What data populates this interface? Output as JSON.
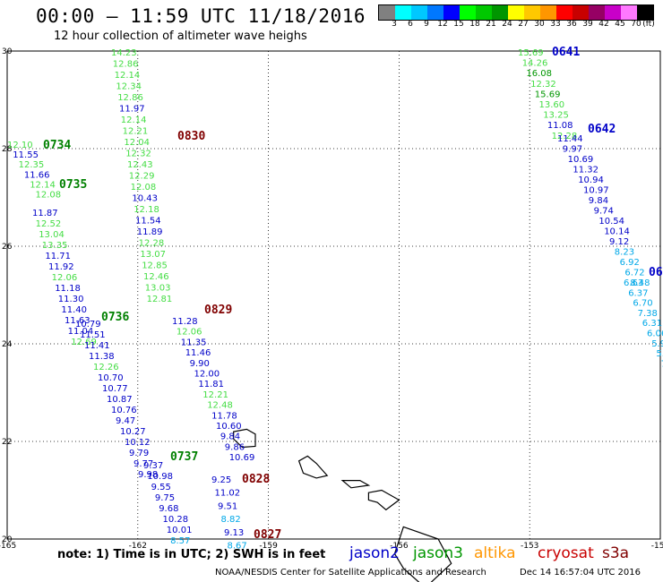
{
  "header": {
    "title": "00:00 — 11:59 UTC 11/18/2016",
    "subtitle": "12 hour collection of altimeter wave heighs"
  },
  "colorbar": {
    "colors": [
      "#808080",
      "#00ffff",
      "#00c8ff",
      "#0078ff",
      "#0000ff",
      "#00ff00",
      "#00c800",
      "#009600",
      "#ffff00",
      "#ffc800",
      "#ff9600",
      "#ff0000",
      "#c80000",
      "#960064",
      "#c800c8",
      "#ff78ff",
      "#000000"
    ],
    "labels": [
      "3",
      "6",
      "9",
      "12",
      "15",
      "18",
      "21",
      "24",
      "27",
      "30",
      "33",
      "36",
      "39",
      "42",
      "45",
      "70",
      "(ft)"
    ]
  },
  "map": {
    "lon_ticks": [
      "-165",
      "-162",
      "-159",
      "-156",
      "-153",
      "-150"
    ],
    "lat_ticks": [
      "30",
      "28",
      "26",
      "24",
      "22",
      "20"
    ],
    "lon_range": [
      -165,
      -150
    ],
    "lat_range": [
      20,
      30
    ]
  },
  "tracks": [
    {
      "label": "0734",
      "label_color": "#008000",
      "color": "#0000c8",
      "points": [
        {
          "v": "12.10",
          "c": "#44dd44"
        },
        {
          "v": "11.55",
          "c": "#0000c8"
        },
        {
          "v": "12.35",
          "c": "#44dd44"
        },
        {
          "v": "11.66",
          "c": "#0000c8"
        },
        {
          "v": "12.14",
          "c": "#44dd44"
        },
        {
          "v": "12.08",
          "c": "#44dd44"
        }
      ]
    },
    {
      "label": "0735",
      "label_color": "#008000",
      "points": [
        {
          "v": "11.87",
          "c": "#0000c8"
        },
        {
          "v": "12.52",
          "c": "#44dd44"
        },
        {
          "v": "13.04",
          "c": "#44dd44"
        },
        {
          "v": "13.35",
          "c": "#44dd44"
        },
        {
          "v": "11.71",
          "c": "#0000c8"
        },
        {
          "v": "11.92",
          "c": "#0000c8"
        },
        {
          "v": "12.06",
          "c": "#44dd44"
        },
        {
          "v": "11.18",
          "c": "#0000c8"
        },
        {
          "v": "11.30",
          "c": "#0000c8"
        },
        {
          "v": "11.40",
          "c": "#0000c8"
        },
        {
          "v": "11.63",
          "c": "#0000c8"
        },
        {
          "v": "11.04",
          "c": "#0000c8"
        },
        {
          "v": "12.69",
          "c": "#44dd44"
        }
      ]
    },
    {
      "label": "0736",
      "label_color": "#008000",
      "points": [
        {
          "v": "10.79",
          "c": "#0000c8"
        },
        {
          "v": "11.51",
          "c": "#0000c8"
        },
        {
          "v": "11.41",
          "c": "#0000c8"
        },
        {
          "v": "11.38",
          "c": "#0000c8"
        },
        {
          "v": "12.26",
          "c": "#44dd44"
        },
        {
          "v": "10.70",
          "c": "#0000c8"
        },
        {
          "v": "10.77",
          "c": "#0000c8"
        },
        {
          "v": "10.87",
          "c": "#0000c8"
        },
        {
          "v": "10.76",
          "c": "#0000c8"
        },
        {
          "v": "9.47",
          "c": "#0000c8"
        },
        {
          "v": "10.27",
          "c": "#0000c8"
        },
        {
          "v": "10.12",
          "c": "#0000c8"
        },
        {
          "v": "9.79",
          "c": "#0000c8"
        },
        {
          "v": "9.77",
          "c": "#0000c8"
        },
        {
          "v": "9.98",
          "c": "#0000c8"
        }
      ]
    },
    {
      "label": "0737",
      "label_color": "#008000",
      "points": [
        {
          "v": "9.37",
          "c": "#0000c8"
        },
        {
          "v": "10.98",
          "c": "#0000c8"
        },
        {
          "v": "9.55",
          "c": "#0000c8"
        },
        {
          "v": "9.75",
          "c": "#0000c8"
        },
        {
          "v": "9.68",
          "c": "#0000c8"
        },
        {
          "v": "10.28",
          "c": "#0000c8"
        },
        {
          "v": "10.01",
          "c": "#0000c8"
        },
        {
          "v": "8.57",
          "c": "#00a8e8"
        }
      ]
    },
    {
      "label": "0830",
      "label_color": "#800000",
      "points": [
        {
          "v": "14.23",
          "c": "#44dd44"
        },
        {
          "v": "12.86",
          "c": "#44dd44"
        },
        {
          "v": "12.14",
          "c": "#44dd44"
        },
        {
          "v": "12.34",
          "c": "#44dd44"
        },
        {
          "v": "12.86",
          "c": "#44dd44"
        },
        {
          "v": "11.97",
          "c": "#0000c8"
        },
        {
          "v": "12.14",
          "c": "#44dd44"
        },
        {
          "v": "12.21",
          "c": "#44dd44"
        },
        {
          "v": "12.04",
          "c": "#44dd44"
        },
        {
          "v": "12.32",
          "c": "#44dd44"
        },
        {
          "v": "12.43",
          "c": "#44dd44"
        },
        {
          "v": "12.29",
          "c": "#44dd44"
        },
        {
          "v": "12.08",
          "c": "#44dd44"
        },
        {
          "v": "10.43",
          "c": "#0000c8"
        },
        {
          "v": "12.18",
          "c": "#44dd44"
        },
        {
          "v": "11.54",
          "c": "#0000c8"
        },
        {
          "v": "11.89",
          "c": "#0000c8"
        },
        {
          "v": "12.28",
          "c": "#44dd44"
        },
        {
          "v": "13.07",
          "c": "#44dd44"
        },
        {
          "v": "12.85",
          "c": "#44dd44"
        },
        {
          "v": "12.46",
          "c": "#44dd44"
        },
        {
          "v": "13.03",
          "c": "#44dd44"
        },
        {
          "v": "12.81",
          "c": "#44dd44"
        }
      ]
    },
    {
      "label": "0829",
      "label_color": "#800000",
      "points": [
        {
          "v": "11.28",
          "c": "#0000c8"
        },
        {
          "v": "12.06",
          "c": "#44dd44"
        },
        {
          "v": "11.35",
          "c": "#0000c8"
        },
        {
          "v": "11.46",
          "c": "#0000c8"
        },
        {
          "v": "9.90",
          "c": "#0000c8"
        },
        {
          "v": "12.00",
          "c": "#0000c8"
        },
        {
          "v": "11.81",
          "c": "#0000c8"
        },
        {
          "v": "12.21",
          "c": "#44dd44"
        },
        {
          "v": "12.48",
          "c": "#44dd44"
        },
        {
          "v": "11.78",
          "c": "#0000c8"
        },
        {
          "v": "10.60",
          "c": "#0000c8"
        },
        {
          "v": "9.84",
          "c": "#0000c8"
        },
        {
          "v": "9.86",
          "c": "#0000c8"
        },
        {
          "v": "10.69",
          "c": "#0000c8"
        }
      ]
    },
    {
      "label": "0828",
      "label_color": "#800000",
      "points": [
        {
          "v": "9.25",
          "c": "#0000c8"
        },
        {
          "v": "11.02",
          "c": "#0000c8"
        },
        {
          "v": "9.51",
          "c": "#0000c8"
        },
        {
          "v": "8.82",
          "c": "#00a8e8"
        },
        {
          "v": "9.13",
          "c": "#0000c8"
        },
        {
          "v": "8.67",
          "c": "#00a8e8"
        }
      ]
    },
    {
      "label": "0827",
      "label_color": "#800000",
      "points": []
    },
    {
      "label": "0641",
      "label_color": "#0000c8",
      "points": [
        {
          "v": "15.69",
          "c": "#44dd44"
        },
        {
          "v": "14.26",
          "c": "#44dd44"
        },
        {
          "v": "16.08",
          "c": "#009600"
        },
        {
          "v": "12.32",
          "c": "#44dd44"
        },
        {
          "v": "15.69",
          "c": "#009600"
        },
        {
          "v": "13.60",
          "c": "#44dd44"
        },
        {
          "v": "13.25",
          "c": "#44dd44"
        },
        {
          "v": "11.08",
          "c": "#0000c8"
        },
        {
          "v": "12.28",
          "c": "#44dd44"
        }
      ]
    },
    {
      "label": "0642",
      "label_color": "#0000c8",
      "points": [
        {
          "v": "11.44",
          "c": "#0000c8"
        },
        {
          "v": "9.97",
          "c": "#0000c8"
        },
        {
          "v": "10.69",
          "c": "#0000c8"
        },
        {
          "v": "11.32",
          "c": "#0000c8"
        },
        {
          "v": "10.94",
          "c": "#0000c8"
        },
        {
          "v": "10.97",
          "c": "#0000c8"
        },
        {
          "v": "9.84",
          "c": "#0000c8"
        },
        {
          "v": "9.74",
          "c": "#0000c8"
        },
        {
          "v": "10.54",
          "c": "#0000c8"
        },
        {
          "v": "10.14",
          "c": "#0000c8"
        },
        {
          "v": "9.12",
          "c": "#0000c8"
        },
        {
          "v": "8.23",
          "c": "#00a8e8"
        },
        {
          "v": "6.92",
          "c": "#00a8e8"
        },
        {
          "v": "6.72",
          "c": "#00a8e8"
        },
        {
          "v": "8.48",
          "c": "#00a8e8"
        }
      ]
    },
    {
      "label": "06",
      "label_color": "#0000c8",
      "points": [
        {
          "v": "6.63",
          "c": "#00a8e8"
        },
        {
          "v": "6.37",
          "c": "#00a8e8"
        },
        {
          "v": "6.70",
          "c": "#00a8e8"
        },
        {
          "v": "7.38",
          "c": "#00a8e8"
        },
        {
          "v": "6.31",
          "c": "#00a8e8"
        },
        {
          "v": "6.06",
          "c": "#00a8e8"
        },
        {
          "v": "5.9",
          "c": "#00a8e8"
        },
        {
          "v": "5.",
          "c": "#00a8e8"
        },
        {
          "v": "7",
          "c": "#00a8e8"
        },
        {
          "v": "6",
          "c": "#00a8e8"
        }
      ]
    }
  ],
  "footer": {
    "note": "note: 1) Time is in UTC; 2) SWH is in feet",
    "legend": [
      {
        "name": "jason2",
        "color": "#0000c8"
      },
      {
        "name": "jason3",
        "color": "#009600"
      },
      {
        "name": "altika",
        "color": "#ff9600"
      },
      {
        "name": "cryosat",
        "color": "#c80000"
      },
      {
        "name": "s3a",
        "color": "#800000"
      }
    ],
    "credit": "NOAA/NESDIS Center for Satellite Applications and Research",
    "timestamp": "Dec 14 16:57:04 UTC 2016"
  }
}
